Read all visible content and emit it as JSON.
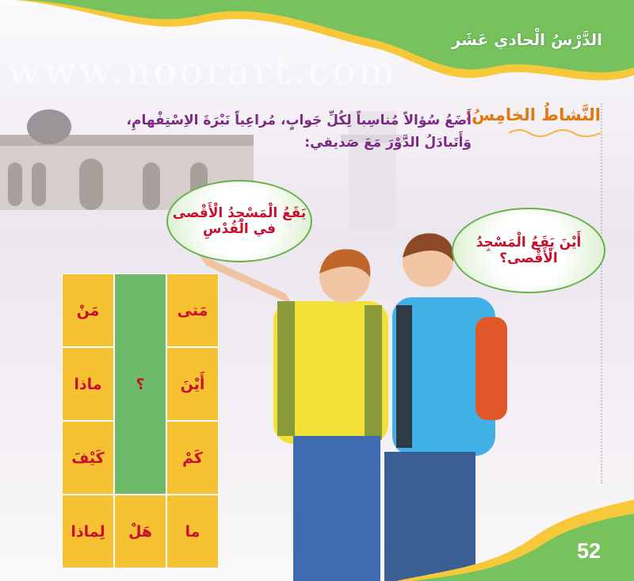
{
  "header": {
    "lesson_title": "الدَّرْسُ الْحادي عَشَر"
  },
  "activity": {
    "title": "النَّشاطُ الخامِسُ:",
    "line1": "أَضَعُ سُؤالاً مُناسِباً لِكُلِّ جَوابٍ، مُراعِياً نَبْرَةَ الاِسْتِفْهامِ،",
    "line2": "وَأَتَبادَلُ الدَّوْرَ مَعَ صَديقي:"
  },
  "bubbles": {
    "answer": {
      "line1": "يَقَعُ الْمَسْجِدُ الْأَقْصى",
      "line2": "في الْقُدْسِ"
    },
    "question": {
      "line1": "أَيْنَ يَقَعُ الْمَسْجِدُ",
      "line2": "الْأَقْصى؟"
    }
  },
  "table": {
    "right_column": [
      "مَتى",
      "أَيْنَ",
      "كَمْ",
      "ما"
    ],
    "middle_column": {
      "question_mark": "؟",
      "bottom": "هَلْ"
    },
    "left_column": [
      "مَنْ",
      "ماذا",
      "كَيْفَ",
      "لِماذا"
    ]
  },
  "watermark": "www.noorart.com",
  "page_number": "52",
  "colors": {
    "green": "#6dbb6a",
    "yellow": "#f6c231",
    "red_text": "#c8102e",
    "purple_text": "#7b2a82",
    "orange_title": "#e07a10"
  }
}
